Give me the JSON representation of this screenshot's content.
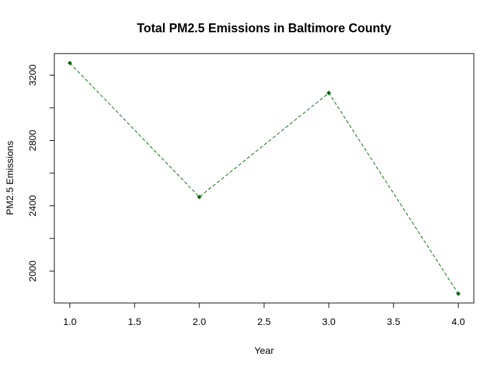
{
  "chart_data": {
    "type": "line",
    "title": "Total PM2.5 Emissions in Baltimore County",
    "xlabel": "Year",
    "ylabel": "PM2.5 Emissions",
    "x": [
      1,
      2,
      3,
      4
    ],
    "series": [
      {
        "values": [
          3274,
          2454,
          3091,
          1862
        ]
      }
    ],
    "xlim": [
      0.88,
      4.12
    ],
    "ylim": [
      1805,
      3332
    ],
    "xticks": [
      1.0,
      1.5,
      2.0,
      2.5,
      3.0,
      3.5,
      4.0
    ],
    "xtick_labels": [
      "1.0",
      "1.5",
      "2.0",
      "2.5",
      "3.0",
      "3.5",
      "4.0"
    ],
    "yticks": [
      2000,
      2200,
      2400,
      2600,
      2800,
      3000,
      3200
    ],
    "ytick_labels": [
      "2000",
      "",
      "2400",
      "",
      "2800",
      "",
      "3200"
    ],
    "line_color": "#006400",
    "line_style": "dashed",
    "marker": "filled-diamond",
    "grid": false,
    "legend": "none"
  }
}
